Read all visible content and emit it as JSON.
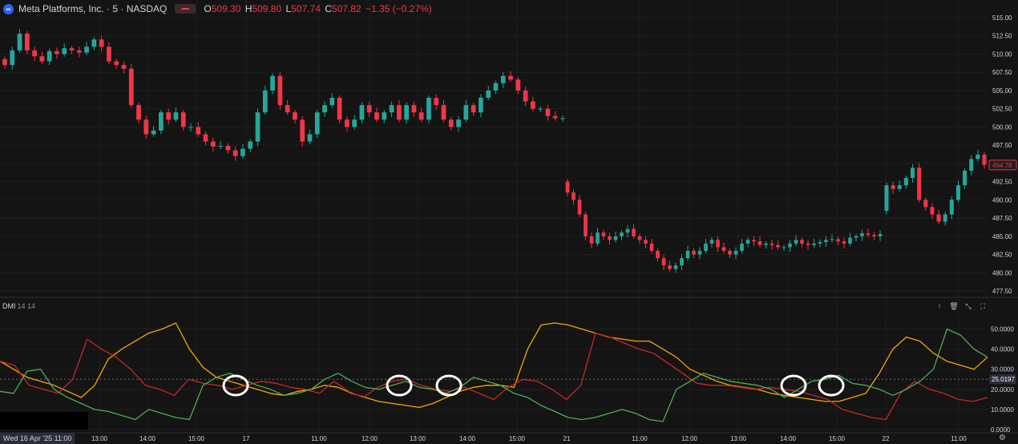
{
  "header": {
    "logo_glyph": "∞",
    "title": "Meta Platforms, Inc. · 5 · NASDAQ",
    "ohlc": [
      {
        "key": "O",
        "value": "509.30"
      },
      {
        "key": "H",
        "value": "509.80"
      },
      {
        "key": "L",
        "value": "507.74"
      },
      {
        "key": "C",
        "value": "507.82"
      },
      {
        "key": "",
        "value": "−1.35 (−0.27%)"
      }
    ]
  },
  "indicator": {
    "name": "DMI",
    "params": "14 14",
    "buttons": [
      "↑",
      "🗑",
      "⤡",
      "⛶"
    ]
  },
  "colors": {
    "up": "#26a69a",
    "down": "#f23645",
    "plus_di": "#4caf50",
    "minus_di": "#c62828",
    "adx": "#f7a600",
    "grid": "#1e1e1e",
    "text": "#d1d4dc"
  },
  "price_axis": {
    "ticks": [
      "515.00",
      "512.50",
      "510.00",
      "507.50",
      "505.00",
      "502.50",
      "500.00",
      "497.50",
      "495.00",
      "492.50",
      "490.00",
      "487.50",
      "485.00",
      "482.50",
      "480.00",
      "477.50"
    ],
    "current_label": "494.78"
  },
  "dmi_axis": {
    "ticks": [
      "50.0000",
      "40.0000",
      "30.0000",
      "20.0000",
      "10.0000",
      "0.0000"
    ],
    "current_label": "25.0197"
  },
  "time_axis": {
    "date_badge": "Wed 16 Apr '25   11:00",
    "labels": [
      "13:00",
      "14:00",
      "15:00",
      "17",
      "11:00",
      "12:00",
      "13:00",
      "14:00",
      "15:00",
      "21",
      "11:00",
      "12:00",
      "13:00",
      "14:00",
      "15:00",
      "22",
      "11:00"
    ]
  },
  "chart_data": {
    "type": "candlestick",
    "price_ylim": [
      477.5,
      515
    ],
    "candle_sessions": [
      {
        "open": 509.3,
        "closes": [
          508.5,
          510.5,
          512.8,
          510.5,
          509.7,
          509,
          510.4,
          510,
          510.8,
          510.5,
          510.2,
          511,
          512,
          511,
          509,
          508.5,
          508,
          503,
          501,
          499,
          499.5,
          502,
          501,
          502,
          500,
          500,
          499,
          498,
          497.3,
          497.4,
          496.8,
          496,
          497,
          498,
          502,
          505,
          507,
          503,
          502,
          501,
          498,
          499,
          502,
          503,
          504,
          501,
          500,
          501,
          503,
          502,
          501,
          502,
          503,
          501,
          503,
          502,
          501,
          504,
          503,
          501,
          500,
          501,
          503,
          502,
          504,
          505,
          506,
          507,
          506.5,
          505,
          503.5,
          502.5,
          502.5,
          501.5,
          501.2,
          501.2
        ]
      },
      {
        "open": 492.5,
        "closes": [
          491,
          490,
          488,
          485,
          484,
          485.5,
          485,
          484.5,
          485,
          485.5,
          486,
          485,
          484.5,
          484,
          483,
          482,
          481,
          480.5,
          481,
          482,
          483,
          482.5,
          483,
          484,
          484.5,
          483.5,
          483,
          482.5,
          483,
          484,
          484.5,
          484.3,
          483.8,
          484,
          483.8,
          483.5,
          483.5,
          484,
          484.5,
          484,
          483.8,
          484,
          484.2,
          484.5,
          484.6,
          484.3,
          484,
          484.8,
          485,
          485.4,
          485.2,
          485,
          485.3
        ]
      },
      {
        "open": 488.5,
        "closes": [
          492,
          491.5,
          492,
          493,
          494.4,
          490,
          489,
          488,
          487,
          488,
          490,
          492,
          494,
          495.6,
          496.2,
          494.8
        ]
      }
    ],
    "dmi": {
      "ylim": [
        0,
        55
      ],
      "plus_di": [
        19,
        18,
        29,
        30,
        20,
        16,
        13,
        10,
        9,
        7,
        5,
        10,
        8,
        6,
        5,
        22,
        26,
        28,
        25,
        22,
        20,
        17,
        18,
        20,
        25,
        28,
        24,
        21,
        20,
        22,
        24,
        21,
        20,
        18,
        21,
        26,
        24,
        22,
        18,
        16,
        12,
        9,
        6,
        5,
        6,
        8,
        10,
        8,
        5,
        4,
        20,
        24,
        28,
        26,
        24,
        23,
        22,
        20,
        16,
        20,
        24,
        25,
        27,
        23,
        22,
        20,
        17,
        20,
        24,
        30,
        50,
        47,
        40,
        36
      ],
      "minus_di": [
        34,
        32,
        22,
        20,
        18,
        25,
        45,
        40,
        36,
        30,
        22,
        20,
        17,
        25,
        23,
        22,
        20,
        22,
        24,
        23,
        21,
        20,
        18,
        24,
        19,
        16,
        21,
        24,
        25,
        22,
        20,
        19,
        21,
        18,
        15,
        21,
        25,
        24,
        20,
        15,
        22,
        48,
        46,
        43,
        40,
        38,
        33,
        28,
        23,
        22,
        22,
        21,
        20,
        21,
        20,
        19,
        17,
        15,
        10,
        8,
        6,
        5,
        18,
        24,
        20,
        18,
        15,
        14,
        16
      ],
      "adx": [
        34,
        30,
        26,
        24,
        22,
        19,
        16,
        22,
        35,
        40,
        44,
        48,
        50,
        53,
        40,
        31,
        26,
        24,
        22,
        20,
        18,
        17,
        19,
        20,
        22,
        21,
        18,
        16,
        14,
        13,
        12,
        11,
        13,
        16,
        19,
        21,
        22,
        22,
        21,
        40,
        52,
        53,
        52,
        50,
        48,
        46,
        45,
        44,
        44,
        40,
        36,
        30,
        27,
        24,
        22,
        21,
        20,
        18,
        17,
        16,
        15,
        14,
        14,
        16,
        18,
        28,
        40,
        46,
        44,
        38,
        34,
        32,
        30,
        36
      ],
      "threshold": 25.0197
    },
    "highlight_count": 6
  }
}
